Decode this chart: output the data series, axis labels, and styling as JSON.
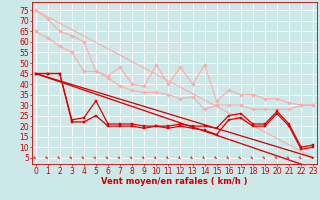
{
  "x": [
    0,
    1,
    2,
    3,
    4,
    5,
    6,
    7,
    8,
    9,
    10,
    11,
    12,
    13,
    14,
    15,
    16,
    17,
    18,
    19,
    20,
    21,
    22,
    23
  ],
  "series": [
    {
      "name": "rafales_upper_light",
      "color": "#ffaaaa",
      "linewidth": 0.8,
      "marker": "D",
      "markersize": 1.8,
      "y": [
        75,
        71,
        65,
        63,
        60,
        46,
        44,
        48,
        40,
        39,
        49,
        40,
        48,
        40,
        49,
        32,
        37,
        35,
        35,
        33,
        33,
        31,
        30,
        30
      ]
    },
    {
      "name": "rafales_lower_light",
      "color": "#ffaaaa",
      "linewidth": 0.8,
      "marker": "D",
      "markersize": 1.8,
      "y": [
        65,
        62,
        58,
        55,
        46,
        46,
        43,
        39,
        37,
        36,
        36,
        35,
        33,
        34,
        28,
        30,
        30,
        30,
        28,
        28,
        28,
        28,
        30,
        30
      ]
    },
    {
      "name": "diag_upper_light",
      "color": "#ffaaaa",
      "linewidth": 0.8,
      "marker": null,
      "markersize": 0,
      "y": [
        75,
        71.96,
        68.91,
        65.87,
        62.83,
        59.78,
        56.74,
        53.7,
        50.65,
        47.61,
        44.57,
        41.52,
        38.48,
        35.43,
        32.39,
        29.35,
        26.3,
        23.26,
        20.22,
        17.17,
        14.13,
        11.09,
        8.04,
        5.0
      ]
    },
    {
      "name": "diag_lower_light",
      "color": "#ffaaaa",
      "linewidth": 0.8,
      "marker": null,
      "markersize": 0,
      "y": [
        45,
        43.04,
        41.09,
        39.13,
        37.17,
        35.22,
        33.26,
        31.3,
        29.35,
        27.39,
        25.43,
        23.48,
        21.52,
        19.57,
        17.61,
        15.65,
        13.7,
        11.74,
        9.78,
        7.83,
        5.87,
        3.91,
        1.96,
        0.0
      ]
    },
    {
      "name": "vent_main_red",
      "color": "#dd0000",
      "linewidth": 0.9,
      "marker": "s",
      "markersize": 2.0,
      "y": [
        45,
        45,
        45,
        23,
        24,
        32,
        21,
        21,
        21,
        20,
        20,
        20,
        21,
        20,
        20,
        19,
        25,
        26,
        21,
        21,
        27,
        21,
        10,
        11
      ]
    },
    {
      "name": "vent_lower_red",
      "color": "#dd0000",
      "linewidth": 0.9,
      "marker": "s",
      "markersize": 2.0,
      "y": [
        45,
        45,
        45,
        22,
        22,
        25,
        20,
        20,
        20,
        19,
        20,
        19,
        20,
        19,
        18,
        16,
        23,
        24,
        20,
        20,
        26,
        20,
        9,
        10
      ]
    },
    {
      "name": "diag_upper_red",
      "color": "#dd0000",
      "linewidth": 0.9,
      "marker": null,
      "markersize": 0,
      "y": [
        45,
        43.04,
        41.09,
        39.13,
        37.17,
        35.22,
        33.26,
        31.3,
        29.35,
        27.39,
        25.43,
        23.48,
        21.52,
        19.57,
        17.61,
        15.65,
        13.7,
        11.74,
        9.78,
        7.83,
        5.87,
        3.91,
        1.96,
        0.0
      ]
    },
    {
      "name": "diag_lower_red",
      "color": "#cc0000",
      "linewidth": 0.9,
      "marker": null,
      "markersize": 0,
      "y": [
        45,
        43.26,
        41.52,
        39.78,
        38.04,
        36.3,
        34.57,
        32.83,
        31.09,
        29.35,
        27.61,
        25.87,
        24.13,
        22.39,
        20.65,
        18.91,
        17.17,
        15.43,
        13.7,
        11.96,
        10.22,
        8.48,
        6.74,
        5.0
      ]
    }
  ],
  "xlim": [
    -0.3,
    23.3
  ],
  "ylim": [
    2,
    79
  ],
  "yticks": [
    5,
    10,
    15,
    20,
    25,
    30,
    35,
    40,
    45,
    50,
    55,
    60,
    65,
    70,
    75
  ],
  "xticks": [
    0,
    1,
    2,
    3,
    4,
    5,
    6,
    7,
    8,
    9,
    10,
    11,
    12,
    13,
    14,
    15,
    16,
    17,
    18,
    19,
    20,
    21,
    22,
    23
  ],
  "xlabel": "Vent moyen/en rafales ( km/h )",
  "bg_color": "#cce8e8",
  "grid_color": "#ffffff",
  "tick_color": "#cc0000",
  "label_color": "#cc0000",
  "axis_fontsize": 5.5
}
